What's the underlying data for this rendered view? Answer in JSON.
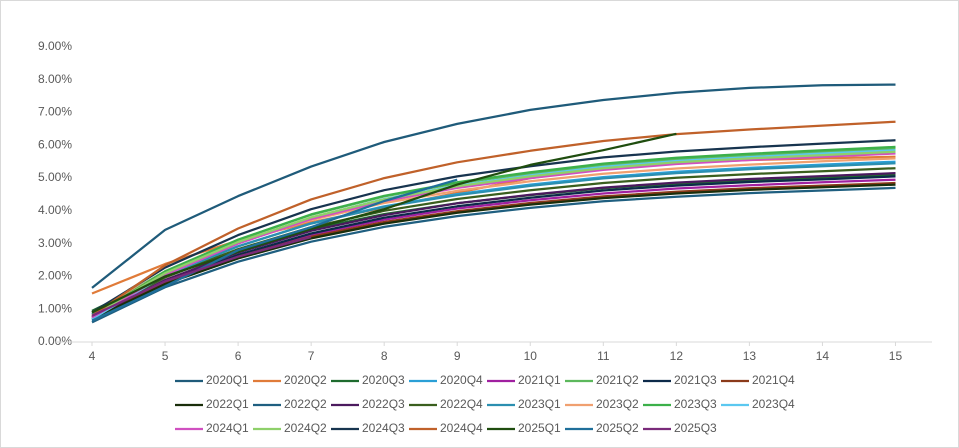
{
  "chart_data": {
    "type": "line",
    "x": [
      4,
      5,
      6,
      7,
      8,
      9,
      10,
      11,
      12,
      13,
      14,
      15
    ],
    "xlim": [
      3.5,
      15.5
    ],
    "xticks": [
      4,
      5,
      6,
      7,
      8,
      9,
      10,
      11,
      12,
      13,
      14,
      15
    ],
    "ylim": [
      0,
      9.5
    ],
    "yticks": [
      {
        "value": 0,
        "label": "0.00%"
      },
      {
        "value": 1,
        "label": "1.00%"
      },
      {
        "value": 2,
        "label": "2.00%"
      },
      {
        "value": 3,
        "label": "3.00%"
      },
      {
        "value": 4,
        "label": "4.00%"
      },
      {
        "value": 5,
        "label": "5.00%"
      },
      {
        "value": 6,
        "label": "6.00%"
      },
      {
        "value": 7,
        "label": "7.00%"
      },
      {
        "value": 8,
        "label": "8.00%"
      },
      {
        "value": 9,
        "label": "9.00%"
      }
    ],
    "grid": false,
    "legend": "bottom",
    "series": [
      {
        "name": "2020Q1",
        "color": "#1f5b7a",
        "values": [
          1.65,
          3.42,
          4.45,
          5.35,
          6.1,
          6.65,
          7.08,
          7.38,
          7.6,
          7.75,
          7.83,
          7.85
        ]
      },
      {
        "name": "2020Q2",
        "color": "#e07b39",
        "values": [
          1.48,
          2.38,
          3.1,
          3.65,
          4.1,
          4.55,
          5.0,
          5.3,
          5.45,
          5.55,
          5.6,
          5.65
        ]
      },
      {
        "name": "2020Q3",
        "color": "#1e6b2e",
        "values": [
          0.95,
          2.03,
          2.82,
          3.44,
          3.9,
          4.23,
          4.48,
          4.69,
          4.83,
          4.93,
          5.02,
          5.1
        ]
      },
      {
        "name": "2020Q4",
        "color": "#2a9fd6",
        "values": [
          0.8,
          2.02,
          2.92,
          3.62,
          4.14,
          4.51,
          4.8,
          5.03,
          5.19,
          5.31,
          5.41,
          5.5
        ]
      },
      {
        "name": "2021Q1",
        "color": "#a020a0",
        "values": [
          0.75,
          1.84,
          2.64,
          3.27,
          3.73,
          4.07,
          4.32,
          4.53,
          4.68,
          4.78,
          4.87,
          4.95
        ]
      },
      {
        "name": "2021Q2",
        "color": "#5cb85c",
        "values": [
          0.85,
          2.16,
          3.12,
          3.88,
          4.44,
          4.84,
          5.14,
          5.4,
          5.57,
          5.7,
          5.8,
          5.9
        ]
      },
      {
        "name": "2021Q3",
        "color": "#0d2a4a",
        "values": [
          0.7,
          1.83,
          2.66,
          3.31,
          3.79,
          4.14,
          4.4,
          4.62,
          4.77,
          4.88,
          4.96,
          5.05
        ]
      },
      {
        "name": "2021Q4",
        "color": "#8b3a1a",
        "values": [
          0.75,
          1.82,
          2.6,
          3.21,
          3.66,
          3.99,
          4.24,
          4.44,
          4.58,
          4.69,
          4.77,
          4.85
        ]
      },
      {
        "name": "2022Q1",
        "color": "#1a2e0a",
        "values": [
          0.7,
          1.77,
          2.55,
          3.16,
          3.61,
          3.94,
          4.19,
          4.39,
          4.53,
          4.64,
          4.72,
          4.8
        ]
      },
      {
        "name": "2022Q2",
        "color": "#1f5f80",
        "values": [
          0.6,
          1.67,
          2.45,
          3.06,
          3.51,
          3.84,
          4.09,
          4.29,
          4.43,
          4.54,
          4.62,
          4.7
        ]
      },
      {
        "name": "2022Q3",
        "color": "#4b1a5e",
        "values": [
          0.75,
          1.89,
          2.73,
          3.39,
          3.87,
          4.23,
          4.49,
          4.71,
          4.86,
          4.97,
          5.06,
          5.15
        ]
      },
      {
        "name": "2022Q4",
        "color": "#3a5f1e",
        "values": [
          0.8,
          1.97,
          2.83,
          3.5,
          4.0,
          4.36,
          4.63,
          4.85,
          5.01,
          5.12,
          5.21,
          5.3
        ]
      },
      {
        "name": "2023Q1",
        "color": "#2b8fb0",
        "values": [
          0.85,
          2.05,
          2.92,
          3.61,
          4.12,
          4.48,
          4.76,
          4.99,
          5.15,
          5.27,
          5.36,
          5.45
        ]
      },
      {
        "name": "2023Q2",
        "color": "#f0a070",
        "values": [
          0.9,
          2.12,
          3.02,
          3.72,
          4.24,
          4.61,
          4.9,
          5.13,
          5.29,
          5.41,
          5.51,
          5.6
        ]
      },
      {
        "name": "2023Q3",
        "color": "#3cb04a",
        "values": [
          0.8,
          2.14,
          3.12,
          3.89,
          4.46,
          4.87,
          5.18,
          5.44,
          5.62,
          5.74,
          5.85,
          5.95
        ]
      },
      {
        "name": "2023Q4",
        "color": "#5bc8f0",
        "values": [
          0.7,
          2.04,
          3.02,
          3.79,
          4.36,
          4.77,
          5.08,
          5.34,
          5.52,
          5.64,
          5.75,
          5.85
        ]
      },
      {
        "name": "2024Q1",
        "color": "#d050c0",
        "values": [
          0.75,
          2.05,
          3.0,
          3.75,
          4.3,
          4.7,
          5.0,
          5.25,
          5.43,
          5.55,
          5.65,
          5.75
        ]
      },
      {
        "name": "2024Q2",
        "color": "#8ed06a",
        "values": [
          0.8,
          2.1,
          3.05,
          3.8,
          4.35,
          4.75,
          5.05,
          5.3,
          5.48,
          5.6,
          5.7,
          5.8
        ]
      },
      {
        "name": "2024Q3",
        "color": "#17344f",
        "values": [
          0.9,
          2.27,
          3.26,
          4.05,
          4.63,
          5.05,
          5.36,
          5.63,
          5.81,
          5.94,
          6.05,
          6.15
        ]
      },
      {
        "name": "2024Q4",
        "color": "#c0612a",
        "values": [
          0.8,
          2.34,
          3.46,
          4.35,
          5.0,
          5.48,
          5.83,
          6.13,
          6.34,
          6.48,
          6.6,
          6.72
        ]
      },
      {
        "name": "2025Q1",
        "color": "#1f4d0f",
        "values": [
          0.9,
          2.0,
          2.75,
          3.45,
          4.05,
          4.8,
          5.4,
          5.85,
          6.35,
          null,
          null,
          null
        ]
      },
      {
        "name": "2025Q2",
        "color": "#1f6f9a",
        "values": [
          0.65,
          1.7,
          2.8,
          3.5,
          4.3,
          4.95,
          null,
          null,
          null,
          null,
          null,
          null
        ]
      },
      {
        "name": "2025Q3",
        "color": "#7a2a7a",
        "values": [
          0.8,
          1.85,
          2.6,
          3.2,
          null,
          null,
          null,
          null,
          null,
          null,
          null,
          null
        ]
      }
    ]
  }
}
